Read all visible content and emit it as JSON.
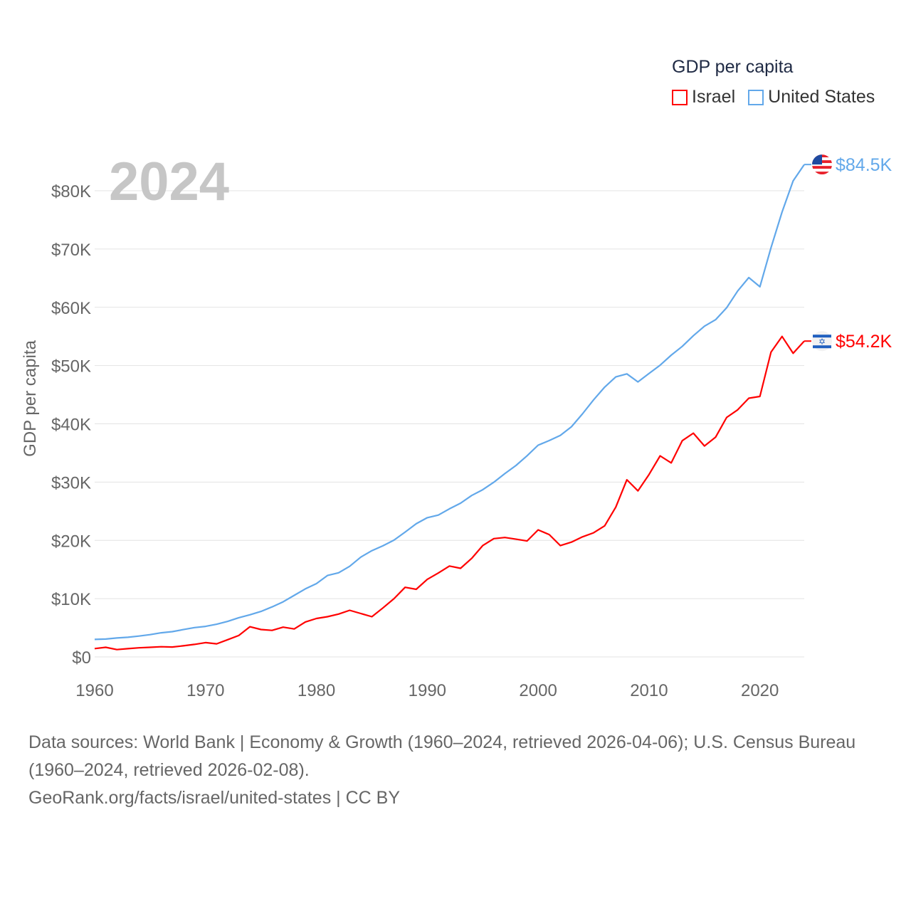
{
  "chart_data": {
    "type": "line",
    "title": "GDP per capita",
    "year_label": "2024",
    "xlabel": "",
    "ylabel": "GDP per capita",
    "xlim": [
      1960,
      2024
    ],
    "ylim": [
      0,
      80000
    ],
    "x_ticks": [
      "1960",
      "1970",
      "1980",
      "1990",
      "2000",
      "2010",
      "2020"
    ],
    "y_ticks": [
      "$0",
      "$10K",
      "$20K",
      "$30K",
      "$40K",
      "$50K",
      "$60K",
      "$70K",
      "$80K"
    ],
    "grid": true,
    "legend_position": "top-right",
    "x": [
      1960,
      1961,
      1962,
      1963,
      1964,
      1965,
      1966,
      1967,
      1968,
      1969,
      1970,
      1971,
      1972,
      1973,
      1974,
      1975,
      1976,
      1977,
      1978,
      1979,
      1980,
      1981,
      1982,
      1983,
      1984,
      1985,
      1986,
      1987,
      1988,
      1989,
      1990,
      1991,
      1992,
      1993,
      1994,
      1995,
      1996,
      1997,
      1998,
      1999,
      2000,
      2001,
      2002,
      2003,
      2004,
      2005,
      2006,
      2007,
      2008,
      2009,
      2010,
      2011,
      2012,
      2013,
      2014,
      2015,
      2016,
      2017,
      2018,
      2019,
      2020,
      2021,
      2022,
      2023,
      2024
    ],
    "series": [
      {
        "name": "Israel",
        "color": "#ff0000",
        "end_label": "$54.2K",
        "flag": "israel-flag",
        "values": [
          1430,
          1650,
          1260,
          1420,
          1560,
          1650,
          1750,
          1700,
          1900,
          2150,
          2450,
          2250,
          2950,
          3680,
          5180,
          4700,
          4550,
          5100,
          4800,
          6000,
          6600,
          6900,
          7350,
          8000,
          7450,
          6900,
          8400,
          10000,
          11950,
          11600,
          13300,
          14400,
          15600,
          15200,
          16900,
          19100,
          20300,
          20500,
          20200,
          19900,
          21800,
          21000,
          19100,
          19700,
          20600,
          21300,
          22500,
          25700,
          30400,
          28500,
          31300,
          34500,
          33300,
          37100,
          38400,
          36200,
          37700,
          41100,
          42400,
          44400,
          44700,
          52300,
          55000,
          52100,
          54200
        ]
      },
      {
        "name": "United States",
        "color": "#62a8ea",
        "end_label": "$84.5K",
        "flag": "us-flag",
        "values": [
          3007,
          3067,
          3244,
          3375,
          3574,
          3828,
          4146,
          4336,
          4696,
          5032,
          5234,
          5609,
          6094,
          6726,
          7226,
          7801,
          8592,
          9453,
          10565,
          11674,
          12575,
          13976,
          14434,
          15544,
          17121,
          18237,
          19071,
          20039,
          21417,
          22857,
          23889,
          24342,
          25419,
          26387,
          27695,
          28691,
          29968,
          31459,
          32854,
          34516,
          36330,
          37134,
          38023,
          39496,
          41713,
          44115,
          46299,
          48050,
          48570,
          47195,
          48651,
          50066,
          51784,
          53291,
          55124,
          56763,
          57867,
          59915,
          62805,
          65095,
          63528,
          70219,
          76330,
          81695,
          84500
        ]
      }
    ]
  },
  "footer": {
    "sources": "Data sources: World Bank | Economy & Growth (1960–2024, retrieved 2026-04-06); U.S. Census Bureau (1960–2024, retrieved 2026-02-08).",
    "credit": "GeoRank.org/facts/israel/united-states | CC BY"
  }
}
